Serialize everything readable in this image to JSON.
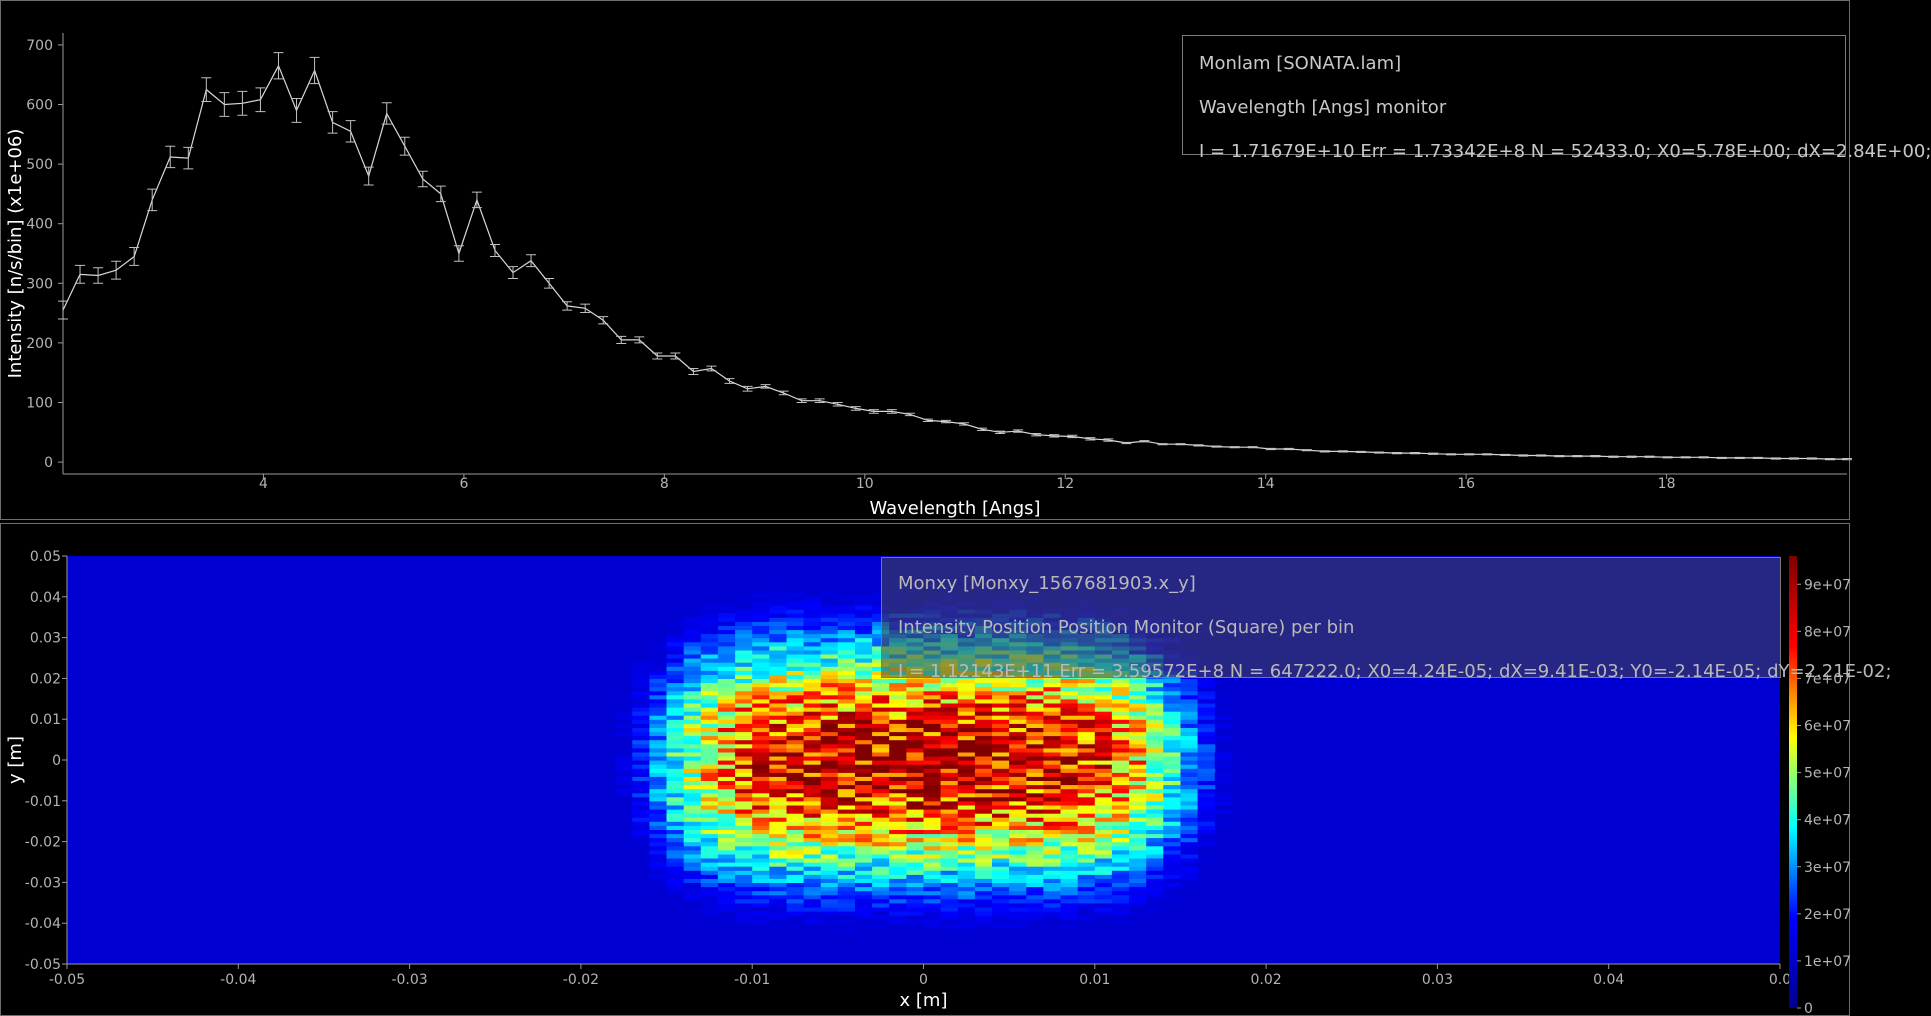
{
  "top_chart": {
    "legend": {
      "line1": "Monlam [SONATA.lam]",
      "line2": "Wavelength [Angs] monitor",
      "line3": "I = 1.71679E+10 Err = 1.73342E+8 N = 52433.0; X0=5.78E+00; dX=2.84E+00;"
    },
    "chart_data": {
      "type": "line",
      "xlabel": "Wavelength [Angs]",
      "ylabel": "Intensity [n/s/bin] (x1e+06)",
      "xlim": [
        2.0,
        19.8
      ],
      "ylim": [
        -20,
        720
      ],
      "x_ticks": [
        "4",
        "6",
        "8",
        "10",
        "12",
        "14",
        "16",
        "18"
      ],
      "y_ticks": [
        "0",
        "100",
        "200",
        "300",
        "400",
        "500",
        "600",
        "700"
      ],
      "points": [
        [
          2.0,
          255,
          15
        ],
        [
          2.17,
          315,
          15
        ],
        [
          2.35,
          313,
          13
        ],
        [
          2.53,
          322,
          15
        ],
        [
          2.71,
          345,
          15
        ],
        [
          2.89,
          440,
          18
        ],
        [
          3.07,
          512,
          18
        ],
        [
          3.25,
          510,
          18
        ],
        [
          3.43,
          625,
          20
        ],
        [
          3.61,
          600,
          20
        ],
        [
          3.79,
          602,
          20
        ],
        [
          3.97,
          608,
          20
        ],
        [
          4.15,
          665,
          22
        ],
        [
          4.33,
          590,
          20
        ],
        [
          4.51,
          657,
          22
        ],
        [
          4.69,
          570,
          18
        ],
        [
          4.87,
          555,
          18
        ],
        [
          5.05,
          480,
          15
        ],
        [
          5.23,
          585,
          18
        ],
        [
          5.41,
          530,
          15
        ],
        [
          5.59,
          475,
          13
        ],
        [
          5.77,
          450,
          13
        ],
        [
          5.95,
          350,
          13
        ],
        [
          6.13,
          440,
          13
        ],
        [
          6.31,
          355,
          10
        ],
        [
          6.49,
          318,
          10
        ],
        [
          6.67,
          338,
          10
        ],
        [
          6.85,
          300,
          8
        ],
        [
          7.03,
          262,
          7
        ],
        [
          7.21,
          258,
          7
        ],
        [
          7.39,
          238,
          6
        ],
        [
          7.57,
          205,
          6
        ],
        [
          7.75,
          205,
          5
        ],
        [
          7.93,
          178,
          5
        ],
        [
          8.11,
          178,
          5
        ],
        [
          8.29,
          152,
          5
        ],
        [
          8.47,
          157,
          4
        ],
        [
          8.65,
          136,
          4
        ],
        [
          8.83,
          123,
          4
        ],
        [
          9.01,
          127,
          3
        ],
        [
          9.19,
          116,
          3
        ],
        [
          9.37,
          103,
          3
        ],
        [
          9.55,
          103,
          3
        ],
        [
          9.73,
          97,
          3
        ],
        [
          9.91,
          90,
          3
        ],
        [
          10.09,
          85,
          3
        ],
        [
          10.27,
          85,
          3
        ],
        [
          10.45,
          80,
          2
        ],
        [
          10.63,
          70,
          2
        ],
        [
          10.81,
          68,
          2
        ],
        [
          10.99,
          64,
          2
        ],
        [
          11.17,
          55,
          2
        ],
        [
          11.35,
          50,
          2
        ],
        [
          11.53,
          52,
          2
        ],
        [
          11.71,
          46,
          2
        ],
        [
          11.89,
          44,
          2
        ],
        [
          12.07,
          43,
          2
        ],
        [
          12.25,
          39,
          2
        ],
        [
          12.43,
          37,
          2
        ],
        [
          12.61,
          32,
          1
        ],
        [
          12.79,
          35,
          1
        ],
        [
          12.97,
          30,
          1
        ],
        [
          13.15,
          30,
          1
        ],
        [
          13.33,
          28,
          1
        ],
        [
          13.51,
          26,
          1
        ],
        [
          13.69,
          25,
          1
        ],
        [
          13.87,
          25,
          1
        ],
        [
          14.05,
          22,
          1
        ],
        [
          14.23,
          22,
          1
        ],
        [
          14.41,
          20,
          1
        ],
        [
          14.59,
          18,
          1
        ],
        [
          14.77,
          18,
          1
        ],
        [
          14.95,
          17,
          1
        ],
        [
          15.13,
          16,
          1
        ],
        [
          15.31,
          15,
          1
        ],
        [
          15.49,
          15,
          1
        ],
        [
          15.67,
          14,
          1
        ],
        [
          15.85,
          13,
          1
        ],
        [
          16.03,
          13,
          1
        ],
        [
          16.21,
          13,
          1
        ],
        [
          16.39,
          12,
          1
        ],
        [
          16.57,
          11,
          1
        ],
        [
          16.75,
          11,
          1
        ],
        [
          16.93,
          10,
          1
        ],
        [
          17.11,
          10,
          1
        ],
        [
          17.29,
          10,
          1
        ],
        [
          17.47,
          9,
          1
        ],
        [
          17.65,
          9,
          1
        ],
        [
          17.83,
          9,
          1
        ],
        [
          18.01,
          8,
          1
        ],
        [
          18.19,
          8,
          1
        ],
        [
          18.37,
          8,
          1
        ],
        [
          18.55,
          7,
          1
        ],
        [
          18.73,
          7,
          1
        ],
        [
          18.91,
          7,
          1
        ],
        [
          19.09,
          6,
          1
        ],
        [
          19.27,
          6,
          1
        ],
        [
          19.45,
          6,
          1
        ],
        [
          19.63,
          5,
          1
        ],
        [
          19.8,
          5,
          1
        ]
      ]
    }
  },
  "bottom_chart": {
    "legend": {
      "line1": "Monxy [Monxy_1567681903.x_y]",
      "line2": "Intensity Position Position Monitor (Square) per bin",
      "line3": "I = 1.12143E+11 Err = 3.59572E+8 N = 647222.0; X0=4.24E-05; dX=9.41E-03; Y0=-2.14E-05; dY=2.21E-02;"
    },
    "chart_data": {
      "type": "heatmap",
      "xlabel": "x [m]",
      "ylabel": "y [m]",
      "xlim": [
        -0.05,
        0.05
      ],
      "ylim": [
        -0.05,
        0.05
      ],
      "x_ticks": [
        "-0.05",
        "-0.04",
        "-0.03",
        "-0.02",
        "-0.01",
        "0",
        "0.01",
        "0.02",
        "0.03",
        "0.04",
        "0.0"
      ],
      "y_ticks": [
        "0.05",
        "0.04",
        "0.03",
        "0.02",
        "0.01",
        "0",
        "-0.01",
        "-0.02",
        "-0.03",
        "-0.04",
        "-0.05"
      ],
      "colorbar_ticks": [
        "9e+07",
        "8e+07",
        "7e+07",
        "6e+07",
        "5e+07",
        "4e+07",
        "3e+07",
        "2e+07",
        "1e+07",
        "0"
      ],
      "zlim": [
        0,
        96000000
      ],
      "nx": 100,
      "ny": 100,
      "center": [
        4e-05,
        -2e-05
      ],
      "x_halfwidth": 0.0155,
      "y_halfwidth": 0.037,
      "peak": 85000000,
      "colormap": [
        "#00008f",
        "#0000ff",
        "#00ffff",
        "#ffff00",
        "#ff0000",
        "#800000"
      ]
    }
  }
}
